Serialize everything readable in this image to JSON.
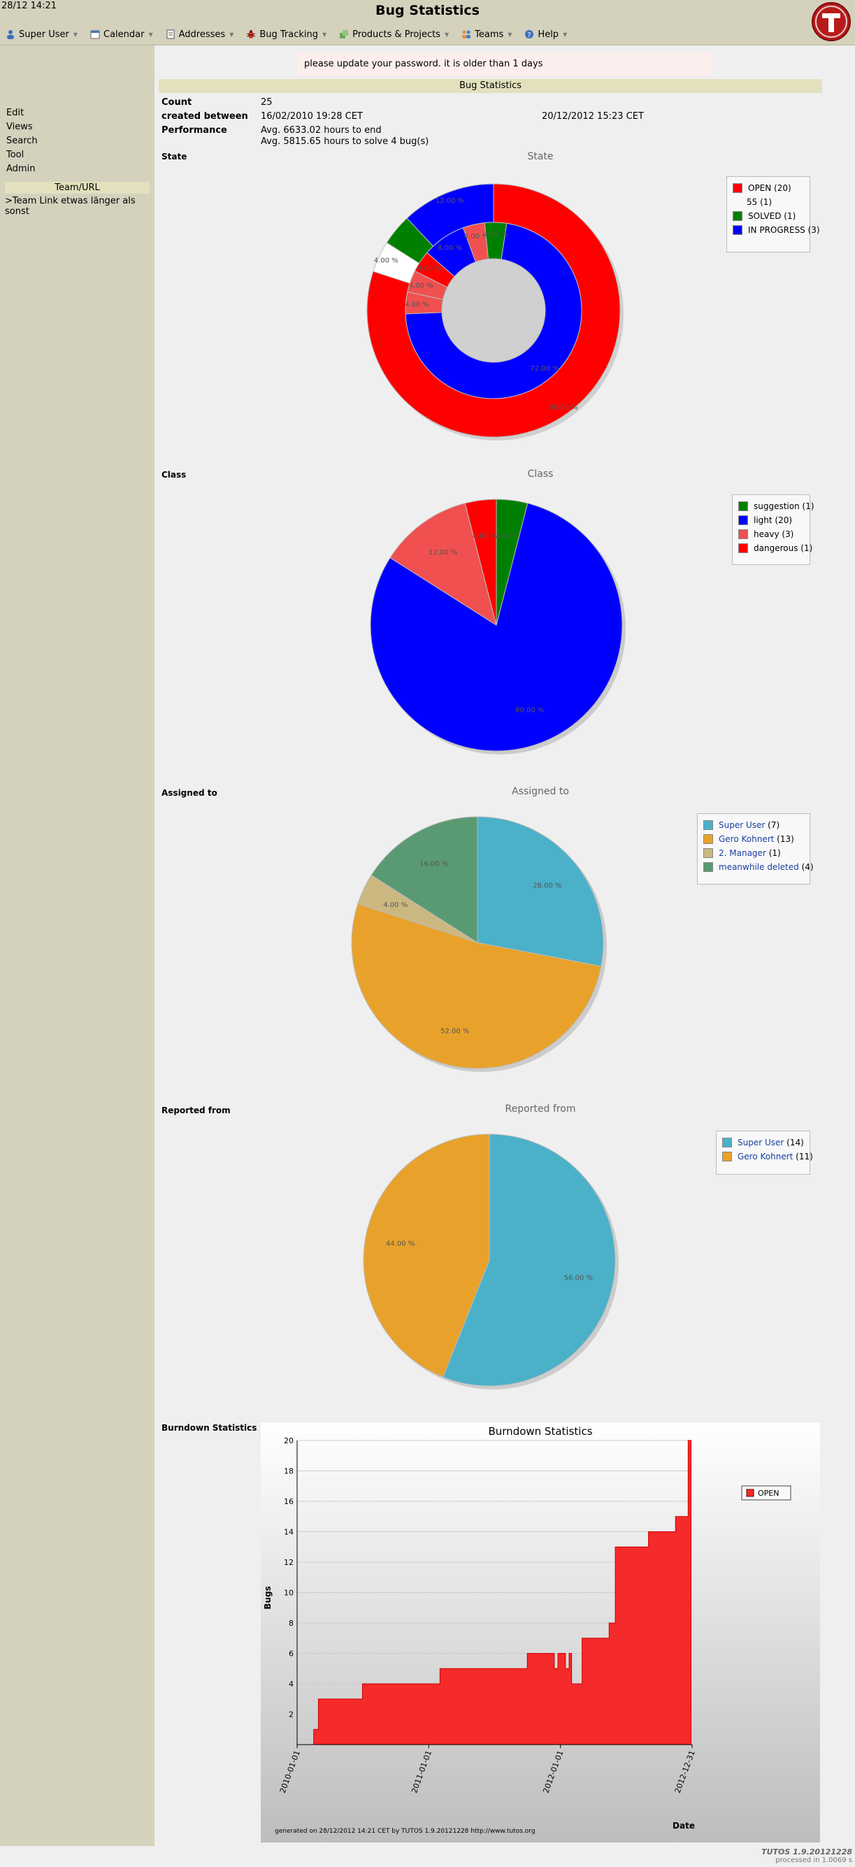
{
  "header": {
    "datetime": "28/12 14:21",
    "title": "Bug Statistics"
  },
  "menu": [
    {
      "label": "Super User",
      "icon": "user-icon"
    },
    {
      "label": "Calendar",
      "icon": "calendar-icon"
    },
    {
      "label": "Addresses",
      "icon": "addressbook-icon"
    },
    {
      "label": "Bug Tracking",
      "icon": "bug-icon"
    },
    {
      "label": "Products & Projects",
      "icon": "products-icon"
    },
    {
      "label": "Teams",
      "icon": "teams-icon"
    },
    {
      "label": "Help",
      "icon": "help-icon"
    }
  ],
  "sidebar": {
    "links": [
      "Edit",
      "Views",
      "Search",
      "Tool",
      "Admin"
    ],
    "team_header": "Team/URL",
    "team_link": ">Team Link etwas länger als sonst"
  },
  "warning": "please update your password. it is older than 1 days",
  "section_title": "Bug Statistics",
  "info": {
    "count_label": "Count",
    "count_value": "25",
    "created_label": "created between",
    "created_from": "16/02/2010 19:28 CET",
    "created_to": "20/12/2012 15:23 CET",
    "performance_label": "Performance",
    "performance_1": "Avg. 6633.02 hours to end",
    "performance_2": "Avg. 5815.65 hours to solve 4 bug(s)"
  },
  "chart_data": [
    {
      "type": "pie",
      "label": "State",
      "title": "State",
      "legend": [
        {
          "name": "OPEN (20)",
          "color": "#ff0000"
        },
        {
          "name": "55 (1)",
          "color": ""
        },
        {
          "name": "SOLVED (1)",
          "color": "#008000"
        },
        {
          "name": "IN PROGRESS (3)",
          "color": "#0000ff"
        }
      ],
      "outer_ring": [
        {
          "name": "OPEN",
          "value": 80.0,
          "label": "80.00 %",
          "color": "#ff0000"
        },
        {
          "name": "55",
          "value": 4.0,
          "label": "4.00 %",
          "color": "#ffffff"
        },
        {
          "name": "SOLVED",
          "value": 4.0,
          "label": "",
          "color": "#008000"
        },
        {
          "name": "IN PROGRESS",
          "value": 12.0,
          "label": "12.00 %",
          "color": "#0000ff"
        }
      ],
      "inner_ring": [
        {
          "name": "light",
          "value": 72.0,
          "label": "72.00 %",
          "color": "#0000ff"
        },
        {
          "name": "heavy",
          "value": 4.0,
          "label": "4.00 %",
          "color": "#f05050"
        },
        {
          "name": "heavy",
          "value": 4.0,
          "label": "4.00 %",
          "color": "#f05050"
        },
        {
          "name": "dangerous",
          "value": 4.0,
          "label": "4.00 %",
          "color": "#ff0000"
        },
        {
          "name": "light",
          "value": 8.0,
          "label": "8.00 %",
          "color": "#0000ff"
        },
        {
          "name": "heavy",
          "value": 4.0,
          "label": "4.00 %",
          "color": "#f05050"
        },
        {
          "name": "suggestion",
          "value": 4.0,
          "label": "4.00 %",
          "color": "#008000"
        }
      ]
    },
    {
      "type": "pie",
      "label": "Class",
      "title": "Class",
      "legend": [
        {
          "name": "suggestion (1)",
          "color": "#008000"
        },
        {
          "name": "light (20)",
          "color": "#0000ff"
        },
        {
          "name": "heavy (3)",
          "color": "#f05050"
        },
        {
          "name": "dangerous (1)",
          "color": "#ff0000"
        }
      ],
      "slices": [
        {
          "name": "suggestion",
          "value": 4.0,
          "label": "4.00 %",
          "color": "#008000"
        },
        {
          "name": "light",
          "value": 80.0,
          "label": "80.00 %",
          "color": "#0000ff"
        },
        {
          "name": "heavy",
          "value": 12.0,
          "label": "12.00 %",
          "color": "#f05050"
        },
        {
          "name": "dangerous",
          "value": 4.0,
          "label": "4.00 %",
          "color": "#ff0000"
        }
      ]
    },
    {
      "type": "pie",
      "label": "Assigned to",
      "title": "Assigned to",
      "legend": [
        {
          "name": "Super User",
          "count": "(7)",
          "color": "#4bb1c8"
        },
        {
          "name": "Gero Kohnert",
          "count": "(13)",
          "color": "#e8a22b"
        },
        {
          "name": "2. Manager",
          "count": "(1)",
          "color": "#cbb881"
        },
        {
          "name": "meanwhile deleted",
          "count": "(4)",
          "color": "#5a9a72"
        }
      ],
      "slices": [
        {
          "name": "Super User",
          "value": 28.0,
          "label": "28.00 %",
          "color": "#4bb1c8"
        },
        {
          "name": "Gero Kohnert",
          "value": 52.0,
          "label": "52.00 %",
          "color": "#e8a22b"
        },
        {
          "name": "2. Manager",
          "value": 4.0,
          "label": "4.00 %",
          "color": "#cbb881"
        },
        {
          "name": "meanwhile deleted",
          "value": 16.0,
          "label": "16.00 %",
          "color": "#5a9a72"
        }
      ]
    },
    {
      "type": "pie",
      "label": "Reported from",
      "title": "Reported from",
      "legend": [
        {
          "name": "Super User",
          "count": "(14)",
          "color": "#4bb1c8"
        },
        {
          "name": "Gero Kohnert",
          "count": "(11)",
          "color": "#e8a22b"
        }
      ],
      "slices": [
        {
          "name": "Super User",
          "value": 56.0,
          "label": "56.00 %",
          "color": "#4bb1c8"
        },
        {
          "name": "Gero Kohnert",
          "value": 44.0,
          "label": "44.00 %",
          "color": "#e8a22b"
        }
      ]
    },
    {
      "type": "area",
      "label": "Burndown Statistics",
      "title": "Burndown Statistics",
      "xlabel": "Date",
      "ylabel": "Bugs",
      "ylim": [
        0,
        20
      ],
      "yticks": [
        2,
        4,
        6,
        8,
        10,
        12,
        14,
        16,
        18,
        20
      ],
      "xticks": [
        "2010-01-01",
        "2011-01-01",
        "2012-01-01",
        "2012-12-31"
      ],
      "grid": true,
      "legend_position": "right",
      "series": [
        {
          "name": "OPEN",
          "color": "#f52a2a",
          "points": [
            [
              "2010-02-16",
              1
            ],
            [
              "2010-03-01",
              3
            ],
            [
              "2010-07-01",
              4
            ],
            [
              "2011-02-01",
              5
            ],
            [
              "2011-10-01",
              6
            ],
            [
              "2011-12-15",
              5
            ],
            [
              "2011-12-25",
              6
            ],
            [
              "2012-01-15",
              5
            ],
            [
              "2012-01-25",
              6
            ],
            [
              "2012-02-01",
              4
            ],
            [
              "2012-03-01",
              7
            ],
            [
              "2012-05-15",
              8
            ],
            [
              "2012-06-01",
              13
            ],
            [
              "2012-09-01",
              14
            ],
            [
              "2012-11-15",
              15
            ],
            [
              "2012-12-20",
              20
            ]
          ]
        }
      ],
      "footer": "generated on 28/12/2012 14:21 CET by TUTOS 1.9.20121228 http://www.tutos.org"
    }
  ],
  "footer": {
    "version": "TUTOS 1.9.20121228",
    "processed": "processed in 1.0069 s"
  }
}
